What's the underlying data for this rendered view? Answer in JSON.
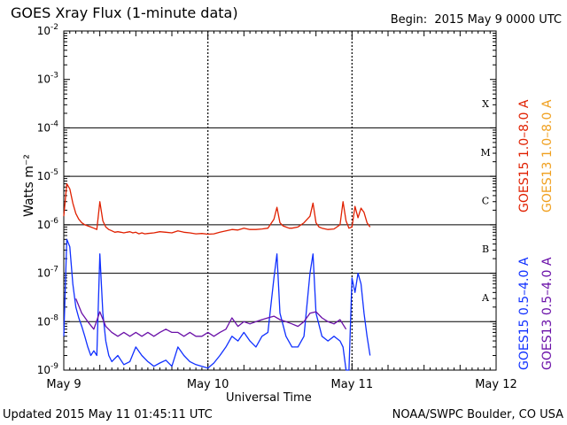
{
  "header": {
    "title": "GOES Xray Flux (1-minute data)",
    "begin": "Begin:  2015 May 9 0000 UTC"
  },
  "footer": {
    "updated": "Updated 2015 May 11 01:45:11 UTC",
    "credit": "NOAA/SWPC Boulder, CO USA"
  },
  "colors": {
    "goes15_long": "#e02000",
    "goes13_long": "#f0a020",
    "goes15_short": "#1030ff",
    "goes13_short": "#6a10a8",
    "grid": "#000000"
  },
  "chart_data": {
    "type": "line",
    "title": "GOES Xray Flux (1-minute data)",
    "xlabel": "Universal Time",
    "ylabel": "Watts m⁻²",
    "yscale": "log",
    "ylim": [
      1e-09,
      0.01
    ],
    "xlim_hours": [
      0,
      72
    ],
    "x_tick_labels": [
      {
        "hour": 0,
        "label": "May 9"
      },
      {
        "hour": 24,
        "label": "May 10"
      },
      {
        "hour": 48,
        "label": "May 11"
      },
      {
        "hour": 72,
        "label": "May 12"
      }
    ],
    "y_tick_exponents": [
      -9,
      -8,
      -7,
      -6,
      -5,
      -4,
      -3,
      -2
    ],
    "flare_classes": [
      {
        "label": "A",
        "value": 1e-08
      },
      {
        "label": "B",
        "value": 1e-07
      },
      {
        "label": "C",
        "value": 1e-06
      },
      {
        "label": "M",
        "value": 1e-05
      },
      {
        "label": "X",
        "value": 0.0001
      }
    ],
    "legend": [
      {
        "label": "GOES15 1.0–8.0 A",
        "color": "#e02000"
      },
      {
        "label": "GOES13 1.0–8.0 A",
        "color": "#f0a020"
      },
      {
        "label": "GOES15 0.5–4.0 A",
        "color": "#1030ff"
      },
      {
        "label": "GOES13 0.5–4.0 A",
        "color": "#6a10a8"
      }
    ],
    "series": [
      {
        "name": "GOES15 1.0–8.0 A",
        "color": "#e02000",
        "x": [
          0,
          0.5,
          1,
          1.5,
          2,
          2.5,
          3,
          3.5,
          4,
          4.5,
          5,
          5.5,
          6,
          6.5,
          7,
          7.5,
          8,
          8.5,
          9,
          9.5,
          10,
          10.5,
          11,
          11.5,
          12,
          12.5,
          13,
          13.5,
          14,
          15,
          16,
          17,
          18,
          19,
          20,
          21,
          22,
          23,
          24,
          25,
          26,
          27,
          28,
          29,
          30,
          31,
          32,
          33,
          34,
          35,
          35.5,
          36,
          36.5,
          37,
          37.5,
          38,
          39,
          40,
          41,
          41.5,
          42,
          42.5,
          43,
          44,
          45,
          46,
          46.5,
          47,
          47.5,
          48,
          48.5,
          49,
          49.5,
          50,
          50.5,
          51
        ],
        "y": [
          1.5e-06,
          7e-06,
          5.5e-06,
          2.8e-06,
          1.7e-06,
          1.3e-06,
          1.1e-06,
          1e-06,
          9.5e-07,
          9e-07,
          8.5e-07,
          8e-07,
          3e-06,
          1.2e-06,
          9e-07,
          8e-07,
          7.5e-07,
          7e-07,
          7.2e-07,
          7e-07,
          6.8e-07,
          7e-07,
          7.2e-07,
          6.8e-07,
          7e-07,
          6.5e-07,
          6.8e-07,
          6.5e-07,
          6.6e-07,
          6.8e-07,
          7.2e-07,
          7e-07,
          6.8e-07,
          7.5e-07,
          7e-07,
          6.8e-07,
          6.5e-07,
          6.6e-07,
          6.4e-07,
          6.5e-07,
          7e-07,
          7.5e-07,
          8e-07,
          7.8e-07,
          8.5e-07,
          8e-07,
          8e-07,
          8.2e-07,
          8.5e-07,
          1.3e-06,
          2.3e-06,
          1.1e-06,
          9.5e-07,
          9e-07,
          8.5e-07,
          8.5e-07,
          9e-07,
          1.1e-06,
          1.5e-06,
          2.8e-06,
          1.1e-06,
          9e-07,
          8.5e-07,
          8e-07,
          8.2e-07,
          1e-06,
          3e-06,
          1.2e-06,
          8.5e-07,
          9e-07,
          2.4e-06,
          1.4e-06,
          2.2e-06,
          1.8e-06,
          1.1e-06,
          9e-07
        ]
      },
      {
        "name": "GOES15 0.5–4.0 A",
        "color": "#1030ff",
        "x": [
          0,
          0.5,
          1,
          1.5,
          2,
          2.5,
          3,
          3.5,
          4,
          4.5,
          5,
          5.5,
          6,
          6.5,
          7,
          7.5,
          8,
          9,
          10,
          11,
          12,
          13,
          14,
          15,
          16,
          17,
          18,
          19,
          20,
          21,
          22,
          23,
          24,
          25,
          26,
          27,
          28,
          29,
          30,
          31,
          32,
          33,
          34,
          35,
          35.5,
          36,
          37,
          38,
          39,
          40,
          41,
          41.5,
          42,
          43,
          44,
          45,
          46,
          46.5,
          47,
          47.5,
          48,
          48.5,
          49,
          49.5,
          50,
          50.5,
          51
        ],
        "y": [
          5e-09,
          5e-07,
          3.5e-07,
          6e-08,
          2e-08,
          1.2e-08,
          8e-09,
          5e-09,
          3e-09,
          2e-09,
          2.5e-09,
          2e-09,
          2.5e-07,
          1.5e-08,
          4e-09,
          2e-09,
          1.5e-09,
          2e-09,
          1.3e-09,
          1.5e-09,
          3e-09,
          2e-09,
          1.5e-09,
          1.2e-09,
          1.4e-09,
          1.6e-09,
          1.2e-09,
          3e-09,
          2e-09,
          1.5e-09,
          1.3e-09,
          1.2e-09,
          1.1e-09,
          1.4e-09,
          2e-09,
          3e-09,
          5e-09,
          4e-09,
          6e-09,
          4e-09,
          3e-09,
          5e-09,
          6e-09,
          8e-08,
          2.5e-07,
          1.5e-08,
          5e-09,
          3e-09,
          3e-09,
          5e-09,
          1e-07,
          2.5e-07,
          1.5e-08,
          5e-09,
          4e-09,
          5e-09,
          4e-09,
          3e-09,
          1e-09,
          1e-09,
          8e-08,
          4e-08,
          1e-07,
          6e-08,
          1.5e-08,
          5e-09,
          2e-09
        ]
      },
      {
        "name": "GOES13 0.5–4.0 A",
        "color": "#6a10a8",
        "x": [
          2,
          3,
          4,
          5,
          6,
          7,
          8,
          9,
          10,
          11,
          12,
          13,
          14,
          15,
          16,
          17,
          18,
          19,
          20,
          21,
          22,
          23,
          24,
          25,
          26,
          27,
          28,
          29,
          30,
          31,
          32,
          33,
          34,
          35,
          36,
          37,
          38,
          39,
          40,
          41,
          42,
          43,
          44,
          45,
          46,
          47
        ],
        "y": [
          3e-08,
          1.5e-08,
          1e-08,
          7e-09,
          1.6e-08,
          8e-09,
          6e-09,
          5e-09,
          6e-09,
          5e-09,
          6e-09,
          5e-09,
          6e-09,
          5e-09,
          6e-09,
          7e-09,
          6e-09,
          6e-09,
          5e-09,
          6e-09,
          5e-09,
          5e-09,
          6e-09,
          5e-09,
          6e-09,
          7e-09,
          1.2e-08,
          8e-09,
          1e-08,
          9e-09,
          1e-08,
          1.1e-08,
          1.2e-08,
          1.3e-08,
          1.1e-08,
          1e-08,
          9e-09,
          8e-09,
          1e-08,
          1.5e-08,
          1.6e-08,
          1.2e-08,
          1e-08,
          9e-09,
          1.1e-08,
          7e-09
        ]
      }
    ]
  }
}
